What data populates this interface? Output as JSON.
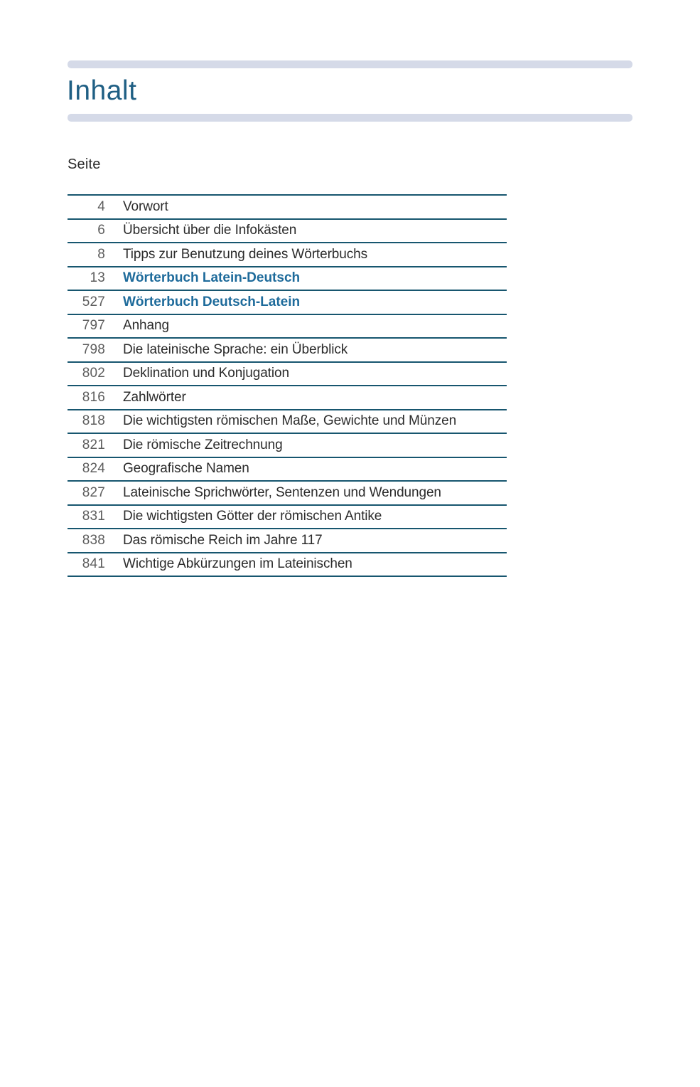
{
  "page": {
    "title": "Inhalt",
    "column_header": "Seite"
  },
  "colors": {
    "title_blue": "#1f5f84",
    "emphasis_blue": "#1e6b9b",
    "rule_teal": "#17566f",
    "bar_blue_gray": "#d5dae8",
    "body_text": "#2b2b2b",
    "page_number_gray": "#5d5d5d"
  },
  "toc": {
    "rows": [
      {
        "page": "4",
        "label": "Vorwort",
        "emphasis": false
      },
      {
        "page": "6",
        "label": "Übersicht über die Infokästen",
        "emphasis": false
      },
      {
        "page": "8",
        "label": "Tipps zur Benutzung deines Wörterbuchs",
        "emphasis": false
      },
      {
        "page": "13",
        "label": "Wörterbuch Latein-Deutsch",
        "emphasis": true
      },
      {
        "page": "527",
        "label": "Wörterbuch Deutsch-Latein",
        "emphasis": true
      },
      {
        "page": "797",
        "label": "Anhang",
        "emphasis": false
      },
      {
        "page": "798",
        "label": "Die lateinische Sprache: ein Überblick",
        "emphasis": false
      },
      {
        "page": "802",
        "label": "Deklination und Konjugation",
        "emphasis": false
      },
      {
        "page": "816",
        "label": "Zahlwörter",
        "emphasis": false
      },
      {
        "page": "818",
        "label": "Die wichtigsten römischen Maße, Gewichte und Münzen",
        "emphasis": false
      },
      {
        "page": "821",
        "label": "Die römische Zeitrechnung",
        "emphasis": false
      },
      {
        "page": "824",
        "label": "Geografische Namen",
        "emphasis": false
      },
      {
        "page": "827",
        "label": "Lateinische Sprichwörter, Sentenzen und Wendungen",
        "emphasis": false
      },
      {
        "page": "831",
        "label": "Die wichtigsten Götter der römischen Antike",
        "emphasis": false
      },
      {
        "page": "838",
        "label": "Das römische Reich im Jahre 117",
        "emphasis": false
      },
      {
        "page": "841",
        "label": "Wichtige Abkürzungen im Lateinischen",
        "emphasis": false
      }
    ]
  }
}
